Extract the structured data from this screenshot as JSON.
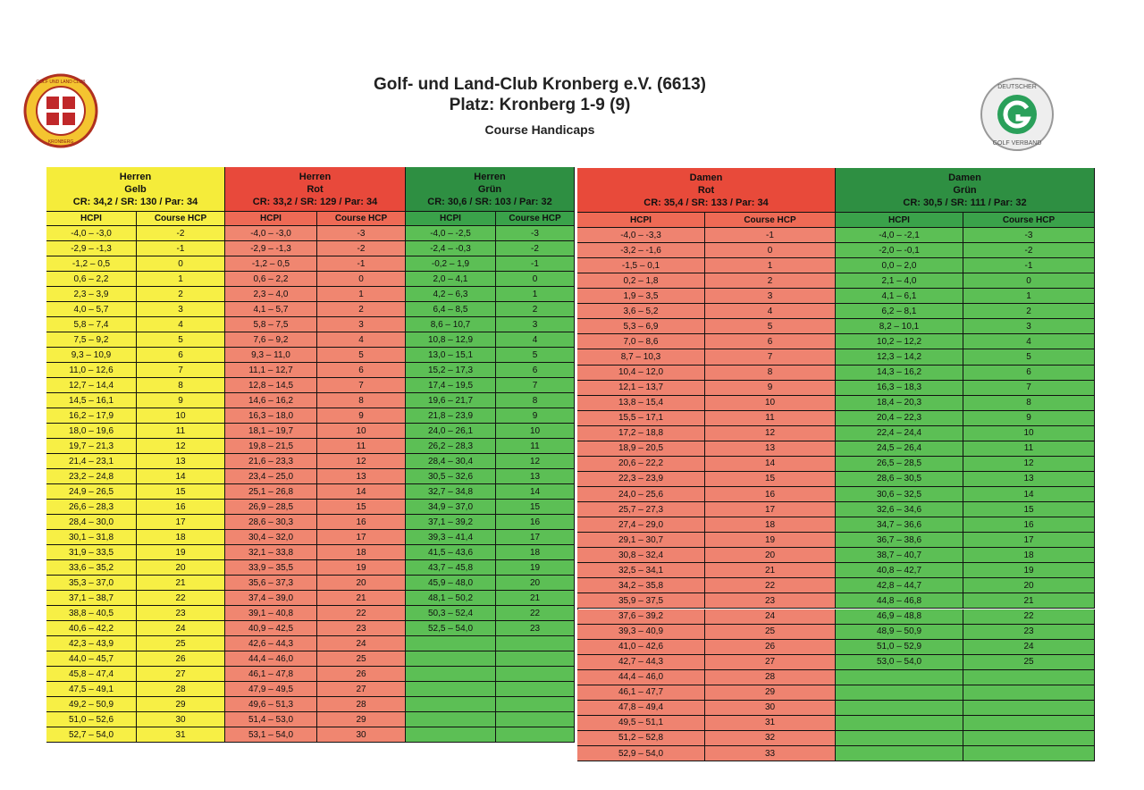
{
  "header": {
    "title": "Golf- und Land-Club Kronberg e.V. (6613)",
    "subtitle": "Platz: Kronberg 1-9 (9)",
    "caption": "Course Handicaps"
  },
  "logos": {
    "left": {
      "text": "GOLF UND LAND CLUB",
      "name": "KRONBERG"
    },
    "right": {
      "text": "DEUTSCHER",
      "name": "GOLF VERBAND"
    }
  },
  "tables": [
    {
      "groups": [
        {
          "gender": "Herren",
          "tee": "Gelb",
          "rating": "CR: 34,2 / SR: 130 / Par: 34",
          "columns": [
            "HCPI",
            "Course HCP"
          ],
          "rows": [
            [
              "-4,0 – -3,0",
              -2
            ],
            [
              "-2,9 – -1,3",
              -1
            ],
            [
              "-1,2 – 0,5",
              0
            ],
            [
              "0,6 – 2,2",
              1
            ],
            [
              "2,3 – 3,9",
              2
            ],
            [
              "4,0 – 5,7",
              3
            ],
            [
              "5,8 – 7,4",
              4
            ],
            [
              "7,5 – 9,2",
              5
            ],
            [
              "9,3 – 10,9",
              6
            ],
            [
              "11,0 – 12,6",
              7
            ],
            [
              "12,7 – 14,4",
              8
            ],
            [
              "14,5 – 16,1",
              9
            ],
            [
              "16,2 – 17,9",
              10
            ],
            [
              "18,0 – 19,6",
              11
            ],
            [
              "19,7 – 21,3",
              12
            ],
            [
              "21,4 – 23,1",
              13
            ],
            [
              "23,2 – 24,8",
              14
            ],
            [
              "24,9 – 26,5",
              15
            ],
            [
              "26,6 – 28,3",
              16
            ],
            [
              "28,4 – 30,0",
              17
            ],
            [
              "30,1 – 31,8",
              18
            ],
            [
              "31,9 – 33,5",
              19
            ],
            [
              "33,6 – 35,2",
              20
            ],
            [
              "35,3 – 37,0",
              21
            ],
            [
              "37,1 – 38,7",
              22
            ],
            [
              "38,8 – 40,5",
              23
            ],
            [
              "40,6 – 42,2",
              24
            ],
            [
              "42,3 – 43,9",
              25
            ],
            [
              "44,0 – 45,7",
              26
            ],
            [
              "45,8 – 47,4",
              27
            ],
            [
              "47,5 – 49,1",
              28
            ],
            [
              "49,2 – 50,9",
              29
            ],
            [
              "51,0 – 52,6",
              30
            ],
            [
              "52,7 – 54,0",
              31
            ]
          ]
        },
        {
          "gender": "Herren",
          "tee": "Rot",
          "rating": "CR: 33,2 / SR: 129 / Par: 34",
          "columns": [
            "HCPI",
            "Course HCP"
          ],
          "rows": [
            [
              "-4,0 – -3,0",
              -3
            ],
            [
              "-2,9 – -1,3",
              -2
            ],
            [
              "-1,2 – 0,5",
              -1
            ],
            [
              "0,6 – 2,2",
              0
            ],
            [
              "2,3 – 4,0",
              1
            ],
            [
              "4,1 – 5,7",
              2
            ],
            [
              "5,8 – 7,5",
              3
            ],
            [
              "7,6 – 9,2",
              4
            ],
            [
              "9,3 – 11,0",
              5
            ],
            [
              "11,1 – 12,7",
              6
            ],
            [
              "12,8 – 14,5",
              7
            ],
            [
              "14,6 – 16,2",
              8
            ],
            [
              "16,3 – 18,0",
              9
            ],
            [
              "18,1 – 19,7",
              10
            ],
            [
              "19,8 – 21,5",
              11
            ],
            [
              "21,6 – 23,3",
              12
            ],
            [
              "23,4 – 25,0",
              13
            ],
            [
              "25,1 – 26,8",
              14
            ],
            [
              "26,9 – 28,5",
              15
            ],
            [
              "28,6 – 30,3",
              16
            ],
            [
              "30,4 – 32,0",
              17
            ],
            [
              "32,1 – 33,8",
              18
            ],
            [
              "33,9 – 35,5",
              19
            ],
            [
              "35,6 – 37,3",
              20
            ],
            [
              "37,4 – 39,0",
              21
            ],
            [
              "39,1 – 40,8",
              22
            ],
            [
              "40,9 – 42,5",
              23
            ],
            [
              "42,6 – 44,3",
              24
            ],
            [
              "44,4 – 46,0",
              25
            ],
            [
              "46,1 – 47,8",
              26
            ],
            [
              "47,9 – 49,5",
              27
            ],
            [
              "49,6 – 51,3",
              28
            ],
            [
              "51,4 – 53,0",
              29
            ],
            [
              "53,1 – 54,0",
              30
            ]
          ]
        },
        {
          "gender": "Herren",
          "tee": "Grün",
          "rating": "CR: 30,6 / SR: 103 / Par: 32",
          "columns": [
            "HCPI",
            "Course HCP"
          ],
          "rows": [
            [
              "-4,0 – -2,5",
              -3
            ],
            [
              "-2,4 – -0,3",
              -2
            ],
            [
              "-0,2 – 1,9",
              -1
            ],
            [
              "2,0 – 4,1",
              0
            ],
            [
              "4,2 – 6,3",
              1
            ],
            [
              "6,4 – 8,5",
              2
            ],
            [
              "8,6 – 10,7",
              3
            ],
            [
              "10,8 – 12,9",
              4
            ],
            [
              "13,0 – 15,1",
              5
            ],
            [
              "15,2 – 17,3",
              6
            ],
            [
              "17,4 – 19,5",
              7
            ],
            [
              "19,6 – 21,7",
              8
            ],
            [
              "21,8 – 23,9",
              9
            ],
            [
              "24,0 – 26,1",
              10
            ],
            [
              "26,2 – 28,3",
              11
            ],
            [
              "28,4 – 30,4",
              12
            ],
            [
              "30,5 – 32,6",
              13
            ],
            [
              "32,7 – 34,8",
              14
            ],
            [
              "34,9 – 37,0",
              15
            ],
            [
              "37,1 – 39,2",
              16
            ],
            [
              "39,3 – 41,4",
              17
            ],
            [
              "41,5 – 43,6",
              18
            ],
            [
              "43,7 – 45,8",
              19
            ],
            [
              "45,9 – 48,0",
              20
            ],
            [
              "48,1 – 50,2",
              21
            ],
            [
              "50,3 – 52,4",
              22
            ],
            [
              "52,5 – 54,0",
              23
            ]
          ]
        }
      ]
    },
    {
      "groups": [
        {
          "gender": "Damen",
          "tee": "Rot",
          "rating": "CR: 35,4 / SR: 133 / Par: 34",
          "columns": [
            "HCPI",
            "Course HCP"
          ],
          "rows": [
            [
              "-4,0 – -3,3",
              -1
            ],
            [
              "-3,2 – -1,6",
              0
            ],
            [
              "-1,5 – 0,1",
              1
            ],
            [
              "0,2 – 1,8",
              2
            ],
            [
              "1,9 – 3,5",
              3
            ],
            [
              "3,6 – 5,2",
              4
            ],
            [
              "5,3 – 6,9",
              5
            ],
            [
              "7,0 – 8,6",
              6
            ],
            [
              "8,7 – 10,3",
              7
            ],
            [
              "10,4 – 12,0",
              8
            ],
            [
              "12,1 – 13,7",
              9
            ],
            [
              "13,8 – 15,4",
              10
            ],
            [
              "15,5 – 17,1",
              11
            ],
            [
              "17,2 – 18,8",
              12
            ],
            [
              "18,9 – 20,5",
              13
            ],
            [
              "20,6 – 22,2",
              14
            ],
            [
              "22,3 – 23,9",
              15
            ],
            [
              "24,0 – 25,6",
              16
            ],
            [
              "25,7 – 27,3",
              17
            ],
            [
              "27,4 – 29,0",
              18
            ],
            [
              "29,1 – 30,7",
              19
            ],
            [
              "30,8 – 32,4",
              20
            ],
            [
              "32,5 – 34,1",
              21
            ],
            [
              "34,2 – 35,8",
              22
            ],
            [
              "35,9 – 37,5",
              23
            ],
            [
              "37,6 – 39,2",
              24
            ],
            [
              "39,3 – 40,9",
              25
            ],
            [
              "41,0 – 42,6",
              26
            ],
            [
              "42,7 – 44,3",
              27
            ],
            [
              "44,4 – 46,0",
              28
            ],
            [
              "46,1 – 47,7",
              29
            ],
            [
              "47,8 – 49,4",
              30
            ],
            [
              "49,5 – 51,1",
              31
            ],
            [
              "51,2 – 52,8",
              32
            ],
            [
              "52,9 – 54,0",
              33
            ]
          ]
        },
        {
          "gender": "Damen",
          "tee": "Grün",
          "rating": "CR: 30,5 / SR: 111 / Par: 32",
          "columns": [
            "HCPI",
            "Course HCP"
          ],
          "rows": [
            [
              "-4,0 – -2,1",
              -3
            ],
            [
              "-2,0 – -0,1",
              -2
            ],
            [
              "0,0 – 2,0",
              -1
            ],
            [
              "2,1 – 4,0",
              0
            ],
            [
              "4,1 – 6,1",
              1
            ],
            [
              "6,2 – 8,1",
              2
            ],
            [
              "8,2 – 10,1",
              3
            ],
            [
              "10,2 – 12,2",
              4
            ],
            [
              "12,3 – 14,2",
              5
            ],
            [
              "14,3 – 16,2",
              6
            ],
            [
              "16,3 – 18,3",
              7
            ],
            [
              "18,4 – 20,3",
              8
            ],
            [
              "20,4 – 22,3",
              9
            ],
            [
              "22,4 – 24,4",
              10
            ],
            [
              "24,5 – 26,4",
              11
            ],
            [
              "26,5 – 28,5",
              12
            ],
            [
              "28,6 – 30,5",
              13
            ],
            [
              "30,6 – 32,5",
              14
            ],
            [
              "32,6 – 34,6",
              15
            ],
            [
              "34,7 – 36,6",
              16
            ],
            [
              "36,7 – 38,6",
              17
            ],
            [
              "38,7 – 40,7",
              18
            ],
            [
              "40,8 – 42,7",
              19
            ],
            [
              "42,8 – 44,7",
              20
            ],
            [
              "44,8 – 46,8",
              21
            ],
            [
              "46,9 – 48,8",
              22
            ],
            [
              "48,9 – 50,9",
              23
            ],
            [
              "51,0 – 52,9",
              24
            ],
            [
              "53,0 – 54,0",
              25
            ]
          ]
        }
      ]
    }
  ]
}
